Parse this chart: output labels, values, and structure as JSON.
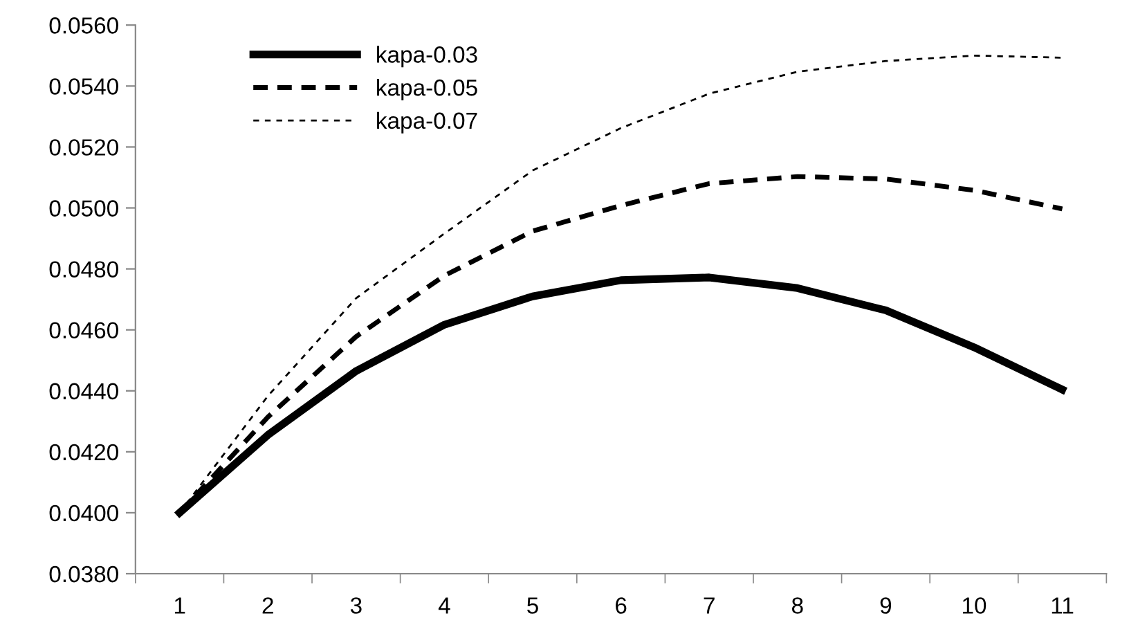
{
  "chart_data": {
    "type": "line",
    "categories": [
      "1",
      "2",
      "3",
      "4",
      "5",
      "6",
      "7",
      "8",
      "9",
      "10",
      "11"
    ],
    "series": [
      {
        "name": "kapa-0.03",
        "color": "#000000",
        "line_style": "solid",
        "values": [
          0.04,
          0.04255,
          0.04465,
          0.04617,
          0.0471,
          0.04763,
          0.04772,
          0.04737,
          0.04664,
          0.04543,
          0.04404
        ]
      },
      {
        "name": "kapa-0.05",
        "color": "#000000",
        "line_style": "dashed",
        "values": [
          0.04,
          0.04314,
          0.04578,
          0.04778,
          0.04924,
          0.05008,
          0.0508,
          0.05103,
          0.05095,
          0.05058,
          0.04997
        ]
      },
      {
        "name": "kapa-0.07",
        "color": "#000000",
        "line_style": "dotted",
        "values": [
          0.04,
          0.04383,
          0.04704,
          0.04916,
          0.05123,
          0.05262,
          0.05375,
          0.05447,
          0.05482,
          0.055,
          0.05493
        ]
      }
    ],
    "ylim": [
      0.038,
      0.056
    ],
    "yticks": [
      {
        "value": 0.038,
        "label": "0.0380"
      },
      {
        "value": 0.04,
        "label": "0.0400"
      },
      {
        "value": 0.042,
        "label": "0.0420"
      },
      {
        "value": 0.044,
        "label": "0.0440"
      },
      {
        "value": 0.046,
        "label": "0.0460"
      },
      {
        "value": 0.048,
        "label": "0.0480"
      },
      {
        "value": 0.05,
        "label": "0.0500"
      },
      {
        "value": 0.052,
        "label": "0.0520"
      },
      {
        "value": 0.054,
        "label": "0.0540"
      },
      {
        "value": 0.056,
        "label": "0.0560"
      }
    ],
    "grid": false,
    "legend": "top left",
    "marker": "none"
  }
}
